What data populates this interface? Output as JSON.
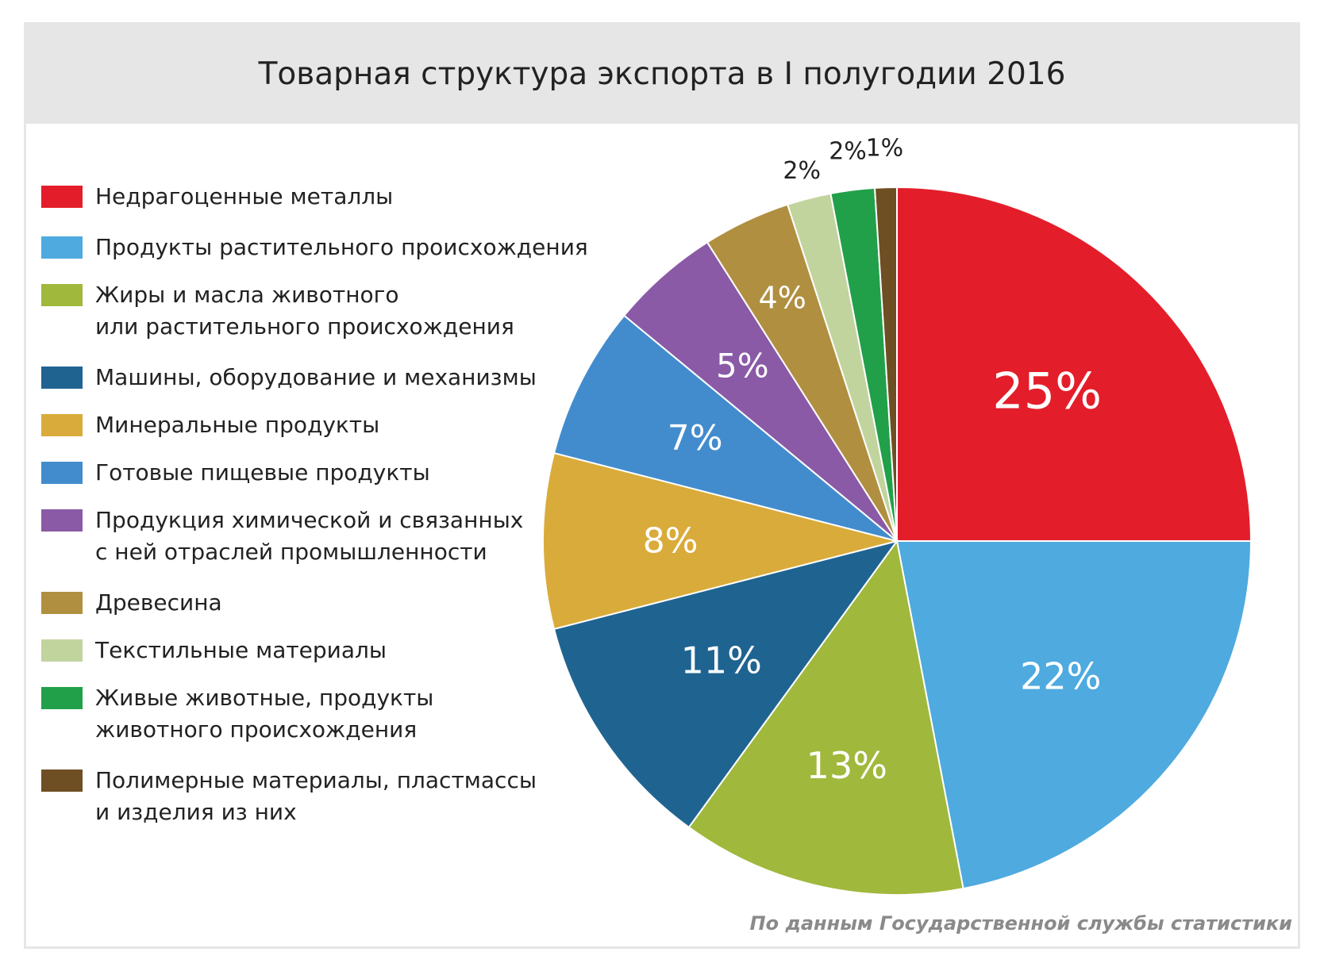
{
  "title": "Товарная структура экспорта в I полугодии 2016",
  "source_note": "По данным Государственной службы статистики",
  "chart_data": {
    "type": "pie",
    "title": "Товарная структура экспорта в I полугодии 2016",
    "legend_position": "left",
    "slices": [
      {
        "lines": [
          "Недрагоценные металлы"
        ],
        "value": 25,
        "label": "25%",
        "color": "#e31e2a",
        "label_color": "#ffffff"
      },
      {
        "lines": [
          "Продукты растительного происхождения"
        ],
        "value": 22,
        "label": "22%",
        "color": "#4eaadf",
        "label_color": "#ffffff"
      },
      {
        "lines": [
          "Жиры и масла животного",
          "или растительного происхождения"
        ],
        "value": 13,
        "label": "13%",
        "color": "#a0b83c",
        "label_color": "#ffffff"
      },
      {
        "lines": [
          "Машины, оборудование и механизмы"
        ],
        "value": 11,
        "label": "11%",
        "color": "#1f6491",
        "label_color": "#ffffff"
      },
      {
        "lines": [
          "Минеральные продукты"
        ],
        "value": 8,
        "label": "8%",
        "color": "#d9ab3a",
        "label_color": "#ffffff"
      },
      {
        "lines": [
          "Готовые пищевые продукты"
        ],
        "value": 7,
        "label": "7%",
        "color": "#428ccd",
        "label_color": "#ffffff"
      },
      {
        "lines": [
          "Продукция химической и связанных",
          "с ней отраслей промышленности"
        ],
        "value": 5,
        "label": "5%",
        "color": "#8a5aa6",
        "label_color": "#ffffff"
      },
      {
        "lines": [
          "Древесина"
        ],
        "value": 4,
        "label": "4%",
        "color": "#b08f40",
        "label_color": "#ffffff"
      },
      {
        "lines": [
          "Текстильные материалы"
        ],
        "value": 2,
        "label": "2%",
        "color": "#c2d49e",
        "label_color": "#222222"
      },
      {
        "lines": [
          "Живые животные, продукты",
          "животного происхождения"
        ],
        "value": 2,
        "label": "2%",
        "color": "#21a049",
        "label_color": "#222222"
      },
      {
        "lines": [
          "Полимерные материалы, пластмассы",
          "и изделия из них"
        ],
        "value": 1,
        "label": "1%",
        "color": "#6e4f23",
        "label_color": "#222222"
      }
    ]
  }
}
